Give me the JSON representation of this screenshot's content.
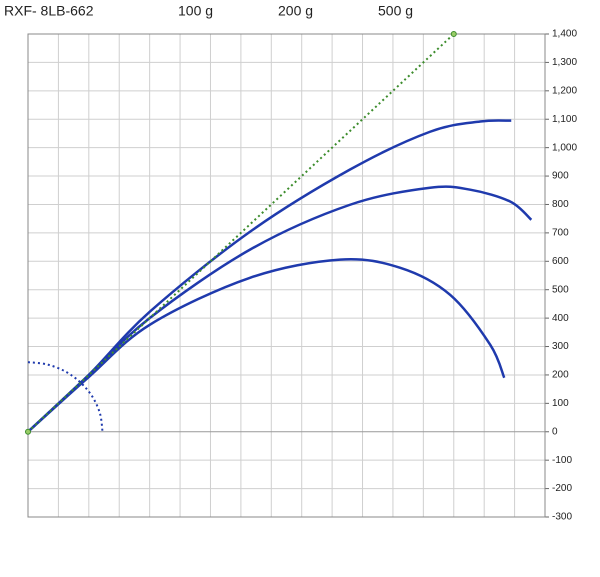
{
  "chart_data": {
    "type": "line",
    "title": "RXF- 8LB-662",
    "xlim": [
      0,
      1700
    ],
    "xticks": [
      0,
      100,
      200,
      300,
      400,
      500,
      600,
      700,
      800,
      900,
      1000,
      1100,
      1200,
      1300,
      1400,
      1500,
      1600,
      1700
    ],
    "ylim": [
      -300,
      1400
    ],
    "yticks": [
      -300,
      -200,
      -100,
      0,
      100,
      200,
      300,
      400,
      500,
      600,
      700,
      800,
      900,
      {
        "value": 1000,
        "label": "1,000"
      },
      {
        "value": 1100,
        "label": "1,100"
      },
      {
        "value": 1200,
        "label": "1,200"
      },
      {
        "value": 1300,
        "label": "1,300"
      },
      {
        "value": 1400,
        "label": "1,400"
      }
    ],
    "grid": true,
    "series": [
      {
        "name": "100 g",
        "color": "#1f3aad",
        "x": [
          0,
          197,
          401,
          730,
          1059,
          1322,
          1487,
          1589
        ],
        "values": [
          0,
          197,
          423,
          704,
          923,
          1056,
          1092,
          1095
        ]
      },
      {
        "name": "200 g",
        "color": "#1f3aad",
        "x": [
          0,
          197,
          401,
          730,
          1059,
          1322,
          1454,
          1586,
          1655
        ],
        "values": [
          0,
          197,
          401,
          641,
          799,
          859,
          852,
          810,
          746
        ]
      },
      {
        "name": "500 g",
        "color": "#1f3aad",
        "x": [
          0,
          197,
          401,
          730,
          1026,
          1224,
          1388,
          1520,
          1566
        ],
        "values": [
          0,
          190,
          377,
          542,
          606,
          577,
          482,
          306,
          190
        ]
      },
      {
        "color": "#3c8c2c",
        "style": "dotted",
        "markers": true,
        "x": [
          0,
          1400
        ],
        "values": [
          0,
          1400
        ]
      },
      {
        "color": "#1f3aad",
        "style": "dotted",
        "x": [
          0,
          63,
          123,
          173,
          212,
          237,
          245
        ],
        "values": [
          245,
          237,
          212,
          173,
          123,
          63,
          0
        ]
      }
    ]
  }
}
